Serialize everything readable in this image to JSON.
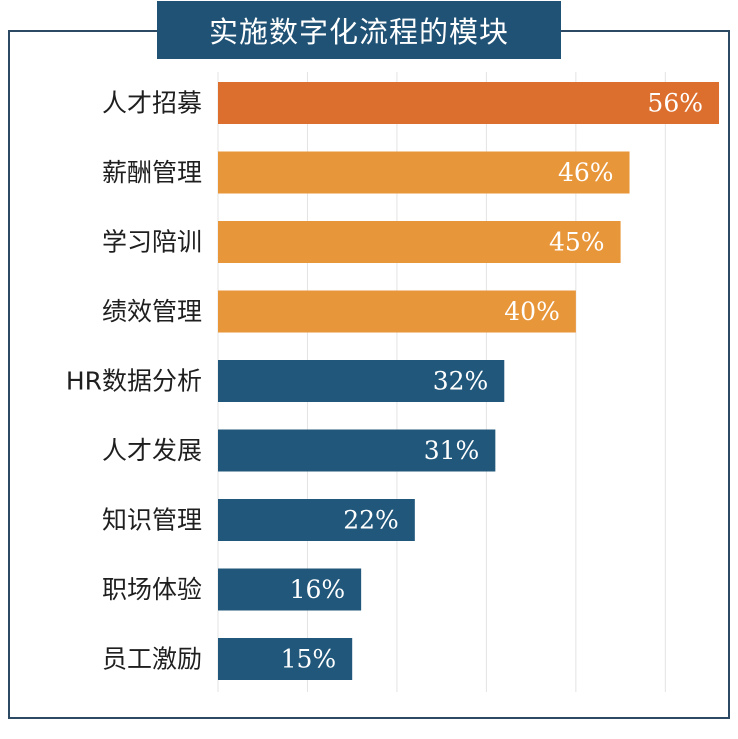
{
  "chart_data": {
    "type": "bar",
    "orientation": "horizontal",
    "title": "实施数字化流程的模块",
    "categories": [
      "人才招募",
      "薪酬管理",
      "学习陪训",
      "绩效管理",
      "HR数据分析",
      "人才发展",
      "知识管理",
      "职场体验",
      "员工激励"
    ],
    "values": [
      56,
      46,
      45,
      40,
      32,
      31,
      22,
      16,
      15
    ],
    "value_labels": [
      "56%",
      "46%",
      "45%",
      "40%",
      "32%",
      "31%",
      "22%",
      "16%",
      "15%"
    ],
    "xlim": [
      0,
      56
    ],
    "grid": true,
    "colors": [
      "#dd6f2e",
      "#e8963a",
      "#e8963a",
      "#e8963a",
      "#20577a",
      "#20577a",
      "#20577a",
      "#20577a",
      "#20577a"
    ]
  }
}
